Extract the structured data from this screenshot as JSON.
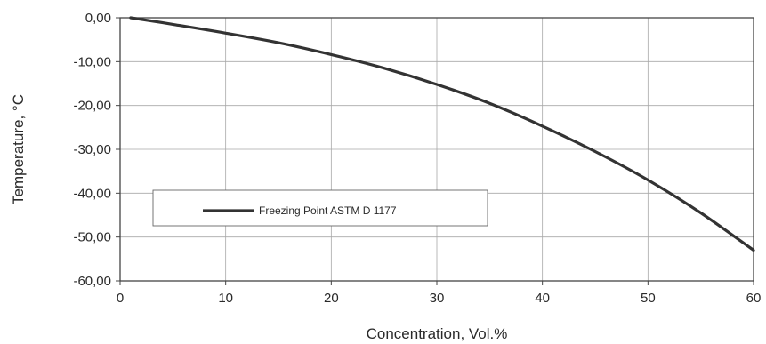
{
  "chart_data": {
    "type": "line",
    "xlabel": "Concentration, Vol.%",
    "ylabel": "Temperature, °C",
    "xlim": [
      0,
      60
    ],
    "ylim": [
      -60,
      0
    ],
    "xticks": [
      0,
      10,
      20,
      30,
      40,
      50,
      60
    ],
    "xtick_labels": [
      "0",
      "10",
      "20",
      "30",
      "40",
      "50",
      "60"
    ],
    "yticks": [
      0,
      -10,
      -20,
      -30,
      -40,
      -50,
      -60
    ],
    "ytick_labels": [
      "0,00",
      "-10,00",
      "-20,00",
      "-30,00",
      "-40,00",
      "-50,00",
      "-60,00"
    ],
    "grid": true,
    "legend_position": "left",
    "series": [
      {
        "name": "Freezing Point ASTM D 1177",
        "color": "#333333",
        "x": [
          1,
          5,
          10,
          15,
          20,
          25,
          30,
          35,
          40,
          45,
          50,
          55,
          60
        ],
        "y": [
          0,
          -1.5,
          -3.5,
          -5.7,
          -8.4,
          -11.5,
          -15.2,
          -19.5,
          -24.7,
          -30.5,
          -37.0,
          -44.5,
          -53.0
        ]
      }
    ]
  }
}
